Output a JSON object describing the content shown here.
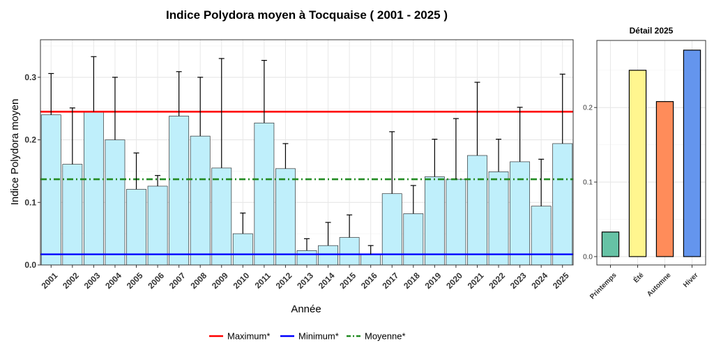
{
  "chart_data": [
    {
      "type": "bar",
      "title": "Indice Polydora moyen à Tocquaise ( 2001 - 2025 )",
      "xlabel": "Année",
      "ylabel": "Indice Polydora moyen",
      "ylim": [
        0,
        0.36
      ],
      "yticks": [
        0.0,
        0.1,
        0.2,
        0.3
      ],
      "ytick_labels": [
        "0.0",
        "0.1",
        "0.2",
        "0.3"
      ],
      "grid": true,
      "categories": [
        "2001",
        "2002",
        "2003",
        "2004",
        "2005",
        "2006",
        "2007",
        "2008",
        "2009",
        "2010",
        "2011",
        "2012",
        "2013",
        "2014",
        "2015",
        "2016",
        "2017",
        "2018",
        "2019",
        "2020",
        "2021",
        "2022",
        "2023",
        "2024",
        "2025"
      ],
      "values": [
        0.24,
        0.161,
        0.245,
        0.2,
        0.121,
        0.126,
        0.238,
        0.206,
        0.155,
        0.05,
        0.227,
        0.154,
        0.023,
        0.031,
        0.044,
        0.017,
        0.114,
        0.082,
        0.141,
        0.137,
        0.175,
        0.149,
        0.165,
        0.094,
        0.194
      ],
      "error_upper": [
        0.306,
        0.251,
        0.333,
        0.3,
        0.179,
        0.143,
        0.309,
        0.3,
        0.33,
        0.083,
        0.327,
        0.194,
        0.042,
        0.068,
        0.08,
        0.031,
        0.213,
        0.127,
        0.201,
        0.234,
        0.292,
        0.201,
        0.252,
        0.169,
        0.305
      ],
      "bar_color": "#BFEFFB",
      "reference_lines": [
        {
          "name": "Maximum*",
          "value": 0.245,
          "color": "#FF0000",
          "style": "solid"
        },
        {
          "name": "Minimum*",
          "value": 0.017,
          "color": "#0000FF",
          "style": "solid"
        },
        {
          "name": "Moyenne*",
          "value": 0.137,
          "color": "#228B22",
          "style": "dashdot"
        }
      ],
      "legend_position": "bottom"
    },
    {
      "type": "bar",
      "title": "Détail 2025",
      "ylim": [
        0,
        0.29
      ],
      "yticks": [
        0.0,
        0.1,
        0.2
      ],
      "ytick_labels": [
        "0.0",
        "0.1",
        "0.2"
      ],
      "grid": true,
      "categories": [
        "Printemps",
        "Été",
        "Automne",
        "Hiver"
      ],
      "values": [
        0.033,
        0.25,
        0.208,
        0.277
      ],
      "colors": [
        "#66C2A5",
        "#FFF68F",
        "#FF8C5A",
        "#6495ED"
      ]
    }
  ]
}
